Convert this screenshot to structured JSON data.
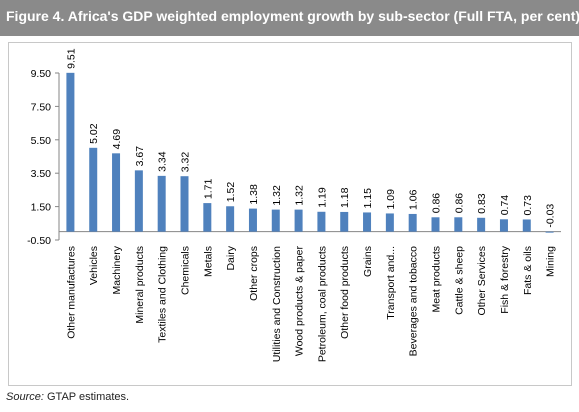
{
  "figure": {
    "label": "Figure 4.",
    "title": "Africa's GDP weighted employment growth by sub-sector (Full FTA, per cent)",
    "source_label": "Source:",
    "source_text": "GTAP estimates."
  },
  "colors": {
    "bar": "#4f81bd",
    "header": "#8a8a8a",
    "axis": "#868686"
  },
  "chart_data": {
    "type": "bar",
    "categories": [
      "Other manufactures",
      "Vehicles",
      "Machinery",
      "Mineral products",
      "Textiles and Clothing",
      "Chemicals",
      "Metals",
      "Dairy",
      "Other crops",
      "Utilities and Construction",
      "Wood products & paper",
      "Petroleum, coal products",
      "Other food products",
      "Grains",
      "Transport and...",
      "Beverages and tobacco",
      "Meat products",
      "Cattle & sheep",
      "Other Services",
      "Fish & forestry",
      "Fats & oils",
      "Mining"
    ],
    "values": [
      9.51,
      5.02,
      4.69,
      3.67,
      3.34,
      3.32,
      1.71,
      1.52,
      1.38,
      1.32,
      1.32,
      1.19,
      1.18,
      1.15,
      1.09,
      1.06,
      0.86,
      0.86,
      0.83,
      0.74,
      0.73,
      -0.03
    ],
    "value_labels": [
      "9.51",
      "5.02",
      "4.69",
      "3.67",
      "3.34",
      "3.32",
      "1.71",
      "1.52",
      "1.38",
      "1.32",
      "1.32",
      "1.19",
      "1.18",
      "1.15",
      "1.09",
      "1.06",
      "0.86",
      "0.86",
      "0.83",
      "0.74",
      "0.73",
      "-0.03"
    ],
    "y_ticks": [
      "9.50",
      "7.50",
      "5.50",
      "3.50",
      "1.50",
      "-0.50"
    ],
    "ylim": [
      -0.5,
      9.5
    ],
    "grid": false,
    "legend": false
  }
}
